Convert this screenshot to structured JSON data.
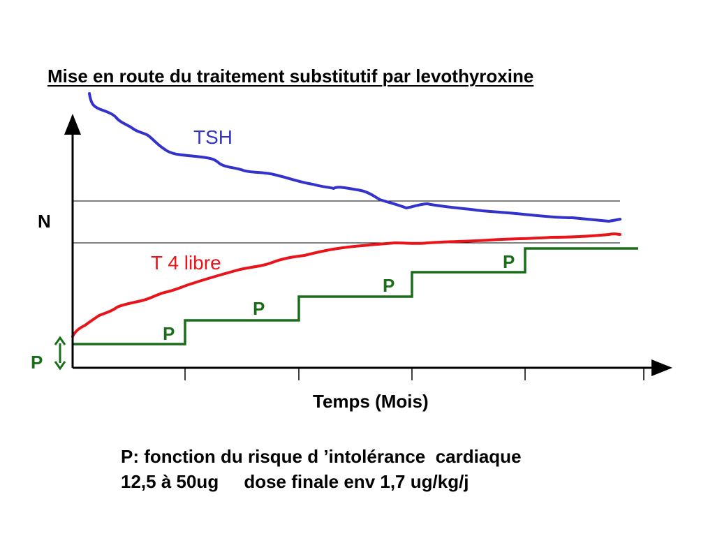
{
  "title": "Mise en route du traitement substitutif par levothyroxine",
  "labels": {
    "normal_band": "N",
    "tsh": "TSH",
    "t4": "T 4 libre",
    "x_axis": "Temps (Mois)",
    "step": "P",
    "initial_step": "P"
  },
  "note": {
    "line1": "P: fonction du risque d ’intolérance  cardiaque",
    "line2": "12,5 à 50ug     dose finale env 1,7 ug/kg/j"
  },
  "colors": {
    "tsh": "#3333cc",
    "t4": "#e8141a",
    "dose": "#1a6e1a",
    "axis": "#000000"
  }
}
